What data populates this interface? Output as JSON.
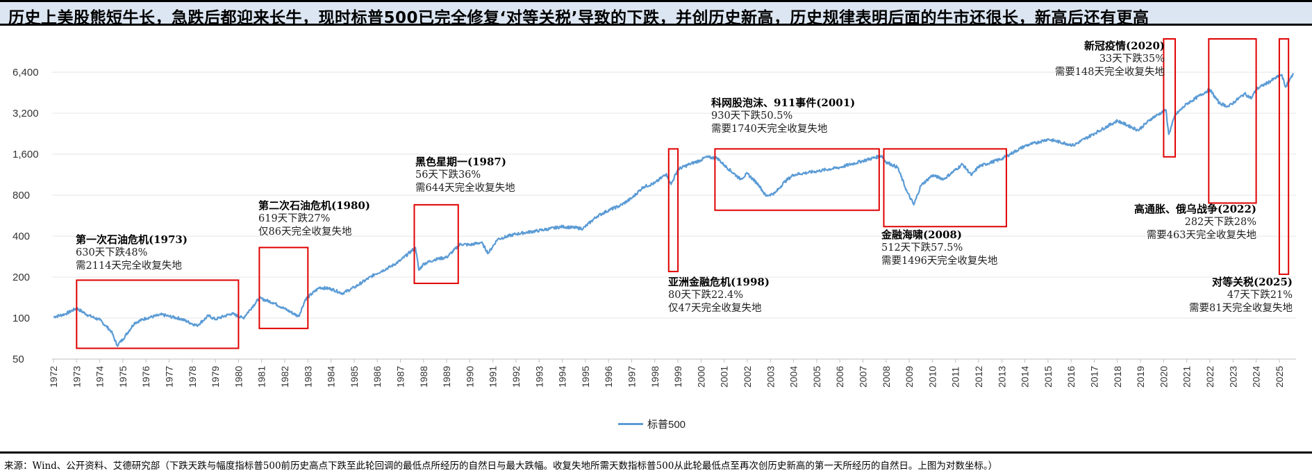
{
  "title": "历史上美股熊短牛长，急跌后都迎来长牛，现时标普500已完全修复‘对等关税’导致的下跌，并创历史新高，历史规律表明后面的牛市还很长，新高后还有更高",
  "footer": "来源：Wind、公开资料、艾德研究部（下跌天跌与幅度指标普500前历史高点下跌至此轮回调的最低点所经历的自然日与最大跌幅。收复失地所需天数指标普500从此轮最低点至再次创历史新高的第一天所经历的自然日。上图为对数坐标。）",
  "chart_data": {
    "type": "line",
    "y_scale": "log",
    "ylim": [
      50,
      9000
    ],
    "xlim": [
      1972,
      2025.8
    ],
    "yticks": [
      50,
      100,
      200,
      400,
      800,
      1600,
      3200,
      6400
    ],
    "ytick_labels": [
      "50",
      "100",
      "200",
      "400",
      "800",
      "1,600",
      "3,200",
      "6,400"
    ],
    "xticks": [
      "1972",
      "1973",
      "1974",
      "1975",
      "1976",
      "1977",
      "1978",
      "1979",
      "1980",
      "1981",
      "1982",
      "1983",
      "1984",
      "1985",
      "1986",
      "1987",
      "1988",
      "1989",
      "1990",
      "1991",
      "1992",
      "1993",
      "1994",
      "1995",
      "1996",
      "1997",
      "1998",
      "1999",
      "2000",
      "2001",
      "2002",
      "2003",
      "2004",
      "2005",
      "2006",
      "2007",
      "2008",
      "2009",
      "2010",
      "2011",
      "2012",
      "2013",
      "2014",
      "2015",
      "2016",
      "2017",
      "2018",
      "2019",
      "2020",
      "2021",
      "2022",
      "2023",
      "2024",
      "2025"
    ],
    "grid": "horizontal",
    "legend_position": "bottom",
    "colors": {
      "line": "#5b9bd5",
      "box": "#e00000"
    },
    "series": [
      {
        "name": "标普500",
        "x": [
          1972.0,
          1972.5,
          1973.0,
          1973.5,
          1974.0,
          1974.5,
          1974.75,
          1975.0,
          1975.5,
          1976.0,
          1976.7,
          1977.0,
          1977.5,
          1978.2,
          1978.7,
          1979.0,
          1979.7,
          1980.2,
          1980.9,
          1981.5,
          1982.0,
          1982.6,
          1982.9,
          1983.5,
          1984.0,
          1984.5,
          1985.0,
          1985.9,
          1986.6,
          1987.0,
          1987.65,
          1987.8,
          1988.0,
          1988.5,
          1989.0,
          1989.6,
          1990.0,
          1990.5,
          1990.8,
          1991.2,
          1992.0,
          1993.0,
          1994.0,
          1994.9,
          1995.5,
          1996.0,
          1996.5,
          1997.0,
          1997.5,
          1998.0,
          1998.5,
          1998.7,
          1999.0,
          1999.5,
          2000.0,
          2000.2,
          2000.7,
          2001.0,
          2001.7,
          2002.0,
          2002.5,
          2002.8,
          2003.2,
          2003.6,
          2004.0,
          2005.0,
          2006.0,
          2007.0,
          2007.8,
          2008.0,
          2008.5,
          2008.9,
          2009.2,
          2009.5,
          2010.0,
          2010.5,
          2011.3,
          2011.7,
          2012.0,
          2013.0,
          2014.0,
          2015.0,
          2016.1,
          2017.0,
          2018.0,
          2018.9,
          2019.5,
          2020.1,
          2020.22,
          2020.5,
          2021.0,
          2021.99,
          2022.4,
          2022.8,
          2023.5,
          2023.8,
          2024.0,
          2025.1,
          2025.27,
          2025.6
        ],
        "values": [
          102,
          107,
          118,
          105,
          97,
          80,
          63,
          70,
          92,
          100,
          106,
          103,
          99,
          88,
          104,
          98,
          108,
          100,
          140,
          130,
          117,
          103,
          138,
          168,
          164,
          152,
          168,
          210,
          240,
          265,
          330,
          225,
          250,
          270,
          280,
          350,
          345,
          360,
          300,
          380,
          415,
          440,
          470,
          455,
          560,
          620,
          670,
          760,
          920,
          980,
          1150,
          960,
          1240,
          1350,
          1450,
          1520,
          1500,
          1330,
          1050,
          1150,
          950,
          790,
          830,
          1000,
          1130,
          1200,
          1280,
          1430,
          1560,
          1400,
          1280,
          850,
          680,
          940,
          1120,
          1050,
          1350,
          1120,
          1300,
          1480,
          1840,
          2060,
          1860,
          2270,
          2820,
          2400,
          2950,
          3380,
          2240,
          3100,
          3750,
          4790,
          3800,
          3580,
          4450,
          4120,
          4800,
          6140,
          4980,
          6300
        ]
      }
    ],
    "annotations": [
      {
        "title": "第一次石油危机(1973)",
        "drop": "630天下跌48%",
        "recover": "需2114天完全收复失地",
        "x_range": [
          1973.0,
          1980.0
        ],
        "y_range": [
          60,
          190
        ]
      },
      {
        "title": "第二次石油危机(1980)",
        "drop": "619天下跌27%",
        "recover": "仅86天完全收复失地",
        "x_range": [
          1980.9,
          1983.0
        ],
        "y_range": [
          84,
          330
        ]
      },
      {
        "title": "黑色星期一(1987)",
        "drop": "56天下跌36%",
        "recover": "需644天完全收复失地",
        "x_range": [
          1987.6,
          1989.5
        ],
        "y_range": [
          180,
          680
        ]
      },
      {
        "title": "亚洲金融危机(1998)",
        "drop": "80天下跌22.4%",
        "recover": "仅47天完全收复失地",
        "x_range": [
          1998.6,
          1999.0
        ],
        "y_range": [
          220,
          1750
        ]
      },
      {
        "title": "科网股泡沫、911事件(2001)",
        "drop": "930天下跌50.5%",
        "recover": "需要1740天完全收复失地",
        "x_range": [
          2000.6,
          2007.7
        ],
        "y_range": [
          620,
          1750
        ]
      },
      {
        "title": "金融海啸(2008)",
        "drop": "512天下跌57.5%",
        "recover": "需要1496天完全收复失地",
        "x_range": [
          2007.9,
          2013.2
        ],
        "y_range": [
          470,
          1750
        ]
      },
      {
        "title": "新冠疫情(2020)",
        "drop": "33天下跌35%",
        "recover": "需要148天完全收复失地",
        "x_range": [
          2020.0,
          2020.5
        ],
        "y_range": [
          1530,
          13000
        ]
      },
      {
        "title": "高通胀、俄乌战争(2022)",
        "drop": "282天下跌28%",
        "recover": "需要463天完全收复失地",
        "x_range": [
          2021.95,
          2024.0
        ],
        "y_range": [
          700,
          13000
        ]
      },
      {
        "title": "对等关税(2025)",
        "drop": "47天下跌21%",
        "recover": "需要81天完全收复失地",
        "x_range": [
          2025.0,
          2025.4
        ],
        "y_range": [
          210,
          13000
        ]
      }
    ]
  }
}
